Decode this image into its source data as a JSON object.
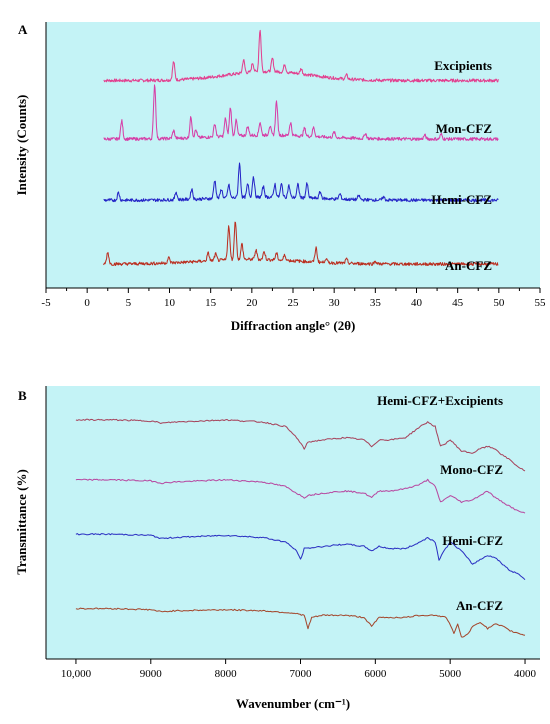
{
  "colors": {
    "background": "#c4f3f6",
    "excipients": "#e0408f",
    "mon_cfz": "#d43fa8",
    "hemi_cfz": "#1f25c8",
    "an_cfz": "#b83020",
    "ftir_top": "#a3455c",
    "ftir_mono": "#b44aa2",
    "ftir_hemi": "#2430c4",
    "ftir_an": "#a0492c",
    "shadow": "#f2a9c8"
  },
  "chart_data": [
    {
      "type": "line",
      "panel_label": "A",
      "title": "",
      "xlabel": "Diffraction angle° (2θ)",
      "ylabel": "Intensity (Counts)",
      "xlim": [
        -5,
        55
      ],
      "xticks": [
        -5,
        0,
        5,
        10,
        15,
        20,
        25,
        30,
        35,
        40,
        45,
        50,
        55
      ],
      "legend": "inline labels above each trace",
      "grid": false,
      "series": [
        {
          "name": "Excipients",
          "color_key": "excipients",
          "baseline": 0.78,
          "x_range": [
            2,
            50
          ],
          "peaks": [
            [
              10.5,
              0.7
            ],
            [
              19.0,
              0.5
            ],
            [
              20.1,
              0.35
            ],
            [
              21.0,
              1.6
            ],
            [
              22.5,
              0.5
            ],
            [
              24.0,
              0.3
            ],
            [
              26.0,
              0.2
            ],
            [
              31.5,
              0.15
            ]
          ],
          "hump": [
            22,
            5,
            0.35
          ]
        },
        {
          "name": "Mon-CFZ",
          "color_key": "mon_cfz",
          "baseline": 0.56,
          "x_range": [
            2,
            50
          ],
          "peaks": [
            [
              4.2,
              0.7
            ],
            [
              8.2,
              2.1
            ],
            [
              10.5,
              0.3
            ],
            [
              12.6,
              0.8
            ],
            [
              13.2,
              0.3
            ],
            [
              15.5,
              0.5
            ],
            [
              16.8,
              0.7
            ],
            [
              17.4,
              1.1
            ],
            [
              18.1,
              0.6
            ],
            [
              19.5,
              0.35
            ],
            [
              21.0,
              0.5
            ],
            [
              22.2,
              0.35
            ],
            [
              23.0,
              1.3
            ],
            [
              24.7,
              0.5
            ],
            [
              26.4,
              0.3
            ],
            [
              27.5,
              0.35
            ],
            [
              30.0,
              0.2
            ],
            [
              33.8,
              0.2
            ],
            [
              41.0,
              0.15
            ],
            [
              43.0,
              0.18
            ]
          ],
          "hump": [
            22,
            6,
            0.15
          ]
        },
        {
          "name": "Hemi-CFZ",
          "color_key": "hemi_cfz",
          "baseline": 0.33,
          "x_range": [
            2,
            50
          ],
          "peaks": [
            [
              3.8,
              0.3
            ],
            [
              10.8,
              0.3
            ],
            [
              12.7,
              0.4
            ],
            [
              15.5,
              0.7
            ],
            [
              16.3,
              0.35
            ],
            [
              17.2,
              0.5
            ],
            [
              18.5,
              1.3
            ],
            [
              19.5,
              0.5
            ],
            [
              20.2,
              0.8
            ],
            [
              21.4,
              0.4
            ],
            [
              22.8,
              0.5
            ],
            [
              23.6,
              0.5
            ],
            [
              24.5,
              0.45
            ],
            [
              25.6,
              0.5
            ],
            [
              26.7,
              0.55
            ],
            [
              28.3,
              0.25
            ],
            [
              30.7,
              0.2
            ],
            [
              33.0,
              0.15
            ],
            [
              36.0,
              0.12
            ]
          ],
          "hump": [
            22,
            6,
            0.12
          ]
        },
        {
          "name": "An-CFZ",
          "color_key": "an_cfz",
          "baseline": 0.09,
          "x_range": [
            2,
            50
          ],
          "peaks": [
            [
              2.5,
              0.45
            ],
            [
              9.9,
              0.2
            ],
            [
              14.7,
              0.3
            ],
            [
              15.6,
              0.25
            ],
            [
              17.2,
              1.3
            ],
            [
              18.0,
              1.5
            ],
            [
              18.8,
              0.6
            ],
            [
              20.5,
              0.35
            ],
            [
              21.5,
              0.3
            ],
            [
              23.0,
              0.25
            ],
            [
              24.0,
              0.2
            ],
            [
              27.8,
              0.55
            ],
            [
              29.0,
              0.15
            ],
            [
              31.5,
              0.15
            ],
            [
              35.0,
              0.1
            ]
          ],
          "hump": [
            20,
            6,
            0.18
          ]
        }
      ]
    },
    {
      "type": "line",
      "panel_label": "B",
      "title": "",
      "xlabel": "Wavenumber (cm⁻¹)",
      "ylabel": "Transmittance (%)",
      "xlim": [
        10400,
        3800
      ],
      "x_reversed": true,
      "xticks": [
        10000,
        9000,
        8000,
        7000,
        6000,
        5000,
        4000
      ],
      "xtick_labels": [
        "10,000",
        "9000",
        "8000",
        "7000",
        "6000",
        "5000",
        "4000"
      ],
      "legend": "inline labels above each trace",
      "grid": false,
      "series": [
        {
          "name": "Hemi-CFZ+Excipients",
          "color_key": "ftir_top",
          "x": [
            10000,
            9500,
            9000,
            8850,
            8700,
            8000,
            7500,
            7200,
            7050,
            6950,
            6900,
            6700,
            6400,
            6150,
            6050,
            5950,
            5800,
            5600,
            5400,
            5300,
            5200,
            5130,
            5080,
            5000,
            4850,
            4700,
            4600,
            4500,
            4400,
            4300,
            4200,
            4100,
            4000
          ],
          "y": [
            0.96,
            0.96,
            0.955,
            0.945,
            0.95,
            0.96,
            0.95,
            0.93,
            0.88,
            0.83,
            0.86,
            0.87,
            0.88,
            0.87,
            0.84,
            0.87,
            0.87,
            0.88,
            0.93,
            0.95,
            0.93,
            0.84,
            0.85,
            0.87,
            0.82,
            0.81,
            0.83,
            0.84,
            0.83,
            0.8,
            0.78,
            0.75,
            0.73
          ]
        },
        {
          "name": "Mono-CFZ",
          "color_key": "ftir_mono",
          "x": [
            10000,
            9500,
            9000,
            8850,
            8700,
            8000,
            7500,
            7200,
            7050,
            6950,
            6900,
            6700,
            6400,
            6150,
            6050,
            5950,
            5800,
            5600,
            5400,
            5300,
            5200,
            5130,
            5080,
            5000,
            4850,
            4700,
            4600,
            4500,
            4400,
            4300,
            4200,
            4100,
            4000
          ],
          "y": [
            0.69,
            0.69,
            0.685,
            0.675,
            0.68,
            0.69,
            0.68,
            0.66,
            0.63,
            0.61,
            0.62,
            0.63,
            0.64,
            0.63,
            0.61,
            0.64,
            0.64,
            0.65,
            0.67,
            0.69,
            0.66,
            0.59,
            0.6,
            0.62,
            0.59,
            0.6,
            0.62,
            0.64,
            0.61,
            0.59,
            0.57,
            0.55,
            0.54
          ]
        },
        {
          "name": "Hemi-CFZ",
          "color_key": "ftir_hemi",
          "x": [
            10000,
            9500,
            9000,
            8850,
            8700,
            8000,
            7500,
            7200,
            7050,
            7000,
            6950,
            6700,
            6400,
            6150,
            6050,
            5950,
            5800,
            5600,
            5400,
            5300,
            5200,
            5150,
            5100,
            5000,
            4850,
            4700,
            4600,
            4500,
            4400,
            4300,
            4200,
            4100,
            4000
          ],
          "y": [
            0.445,
            0.445,
            0.44,
            0.425,
            0.43,
            0.44,
            0.43,
            0.41,
            0.37,
            0.33,
            0.38,
            0.39,
            0.4,
            0.39,
            0.37,
            0.39,
            0.38,
            0.38,
            0.41,
            0.43,
            0.41,
            0.33,
            0.36,
            0.41,
            0.37,
            0.31,
            0.33,
            0.35,
            0.34,
            0.31,
            0.28,
            0.27,
            0.24
          ]
        },
        {
          "name": "An-CFZ",
          "color_key": "ftir_an",
          "x": [
            10000,
            9500,
            9000,
            8850,
            8700,
            8000,
            7500,
            7100,
            6950,
            6900,
            6850,
            6700,
            6400,
            6150,
            6050,
            5950,
            5800,
            5600,
            5400,
            5200,
            5050,
            4950,
            4900,
            4850,
            4750,
            4700,
            4600,
            4500,
            4400,
            4300,
            4200,
            4100,
            4000
          ],
          "y": [
            0.11,
            0.11,
            0.105,
            0.095,
            0.1,
            0.105,
            0.1,
            0.09,
            0.08,
            0.02,
            0.07,
            0.08,
            0.08,
            0.07,
            0.03,
            0.07,
            0.07,
            0.07,
            0.08,
            0.08,
            0.07,
            0.0,
            0.04,
            -0.02,
            0.0,
            0.03,
            0.05,
            0.02,
            0.04,
            0.03,
            0.01,
            0.0,
            -0.01
          ]
        }
      ]
    }
  ]
}
